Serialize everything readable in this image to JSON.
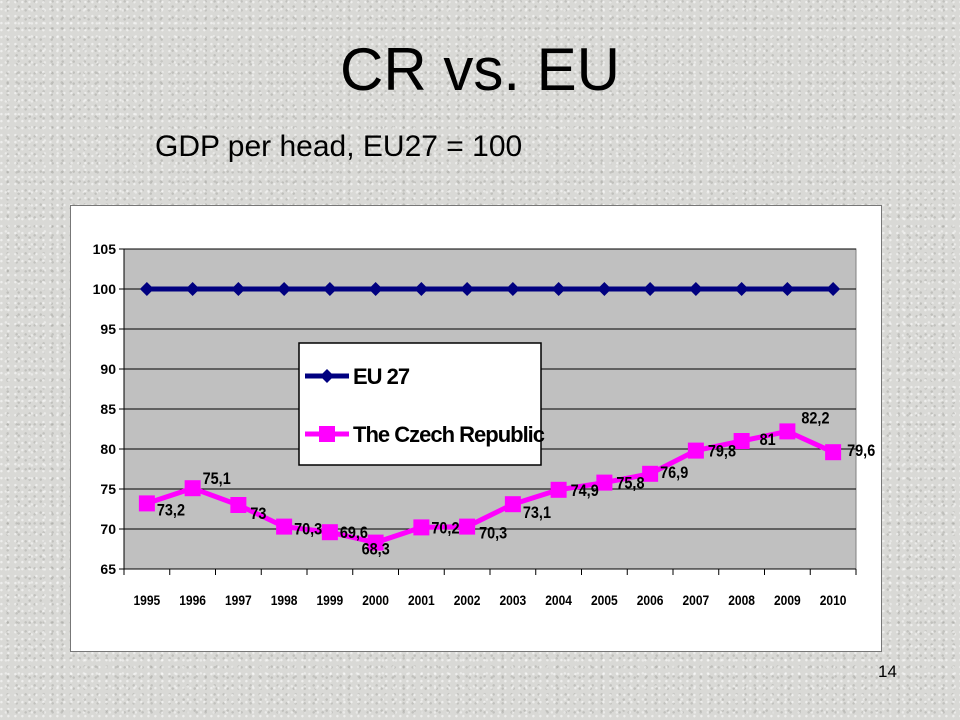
{
  "slide": {
    "title": "CR vs. EU",
    "subtitle": "GDP per head, EU27 = 100",
    "page_number": "14"
  },
  "colors": {
    "eu_series": "#000080",
    "cz_series": "#ff00ff",
    "plot_background": "#c0c0c0",
    "gridline": "#000000"
  },
  "chart_data": {
    "type": "line",
    "title": "",
    "xlabel": "",
    "ylabel": "",
    "ylim": [
      65,
      105
    ],
    "yticks": [
      65,
      70,
      75,
      80,
      85,
      90,
      95,
      100,
      105
    ],
    "grid": true,
    "legend_placement": "inside-center-left",
    "categories": [
      "1995",
      "1996",
      "1997",
      "1998",
      "1999",
      "2000",
      "2001",
      "2002",
      "2003",
      "2004",
      "2005",
      "2006",
      "2007",
      "2008",
      "2009",
      "2010"
    ],
    "series": [
      {
        "name": "EU 27",
        "values": [
          100,
          100,
          100,
          100,
          100,
          100,
          100,
          100,
          100,
          100,
          100,
          100,
          100,
          100,
          100,
          100
        ],
        "marker": "diamond",
        "data_labels": []
      },
      {
        "name": "The Czech Republic",
        "values": [
          73.2,
          75.1,
          73,
          70.3,
          69.6,
          68.3,
          70.2,
          70.3,
          73.1,
          74.9,
          75.8,
          76.9,
          79.8,
          81,
          82.2,
          79.6
        ],
        "marker": "square",
        "data_labels": [
          "73,2",
          "75,1",
          "73",
          "70,3",
          "69,6",
          "68,3",
          "70,2",
          "70,3",
          "73,1",
          "74,9",
          "75,8",
          "76,9",
          "79,8",
          "81",
          "82,2",
          "79,6"
        ]
      }
    ]
  }
}
